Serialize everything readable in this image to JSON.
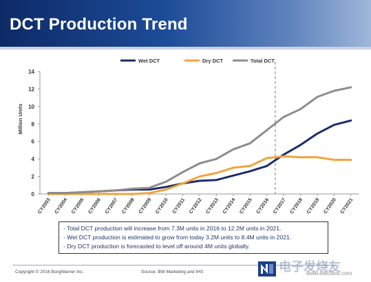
{
  "slide": {
    "title": "DCT Production Trend",
    "notes": [
      "- Total DCT production will increase from 7.3M units in 2016 to 12.2M units in 2021.",
      "- Wet DCT production is estimated to grow from today 3.2M units to 8.4M units in 2021.",
      "- Dry DCT production is forecasted to level off around 4M units globally."
    ],
    "footer": {
      "copyright": "Copyright © 2016 BorgWarner Inc.",
      "source": "Source: BW Marketing and IHS"
    },
    "watermark": {
      "text": "电子发烧友",
      "url": "www.elecfans.com"
    },
    "colors": {
      "title_bar": "#1d4c98",
      "wet": "#1b2a6b",
      "dry": "#f2a33a",
      "total": "#8c8c8c"
    }
  },
  "chart_data": {
    "type": "line",
    "title": "",
    "xlabel": "",
    "ylabel": "Million Units",
    "ylim": [
      0,
      14
    ],
    "yticks": [
      0,
      2,
      4,
      6,
      8,
      10,
      12,
      14
    ],
    "grid": false,
    "legend_position": "top-right",
    "x": [
      "CY2003",
      "CY2004",
      "CY2005",
      "CY2006",
      "CY2007",
      "CY2008",
      "CY2009",
      "CY2010",
      "CY2011",
      "CY2012",
      "CY2013",
      "CY2014",
      "CY2015",
      "CY2016",
      "CY2017",
      "CY2018",
      "CY2019",
      "CY2020",
      "CY2021"
    ],
    "vertical_marker": "CY2016",
    "series": [
      {
        "name": "Wet DCT",
        "color": "#1b2a6b",
        "values": [
          0.1,
          0.1,
          0.2,
          0.3,
          0.4,
          0.5,
          0.5,
          0.8,
          1.2,
          1.5,
          1.6,
          2.1,
          2.6,
          3.2,
          4.5,
          5.6,
          6.9,
          7.9,
          8.4
        ]
      },
      {
        "name": "Dry DCT",
        "color": "#f2a33a",
        "values": [
          0.0,
          0.0,
          0.0,
          0.0,
          0.0,
          0.0,
          0.1,
          0.5,
          1.2,
          2.0,
          2.4,
          3.0,
          3.2,
          4.1,
          4.3,
          4.2,
          4.2,
          3.9,
          3.9
        ]
      },
      {
        "name": "Total DCT",
        "color": "#8c8c8c",
        "values": [
          0.1,
          0.1,
          0.2,
          0.3,
          0.4,
          0.6,
          0.7,
          1.4,
          2.5,
          3.5,
          4.0,
          5.1,
          5.8,
          7.3,
          8.8,
          9.7,
          11.1,
          11.8,
          12.2
        ]
      }
    ]
  }
}
